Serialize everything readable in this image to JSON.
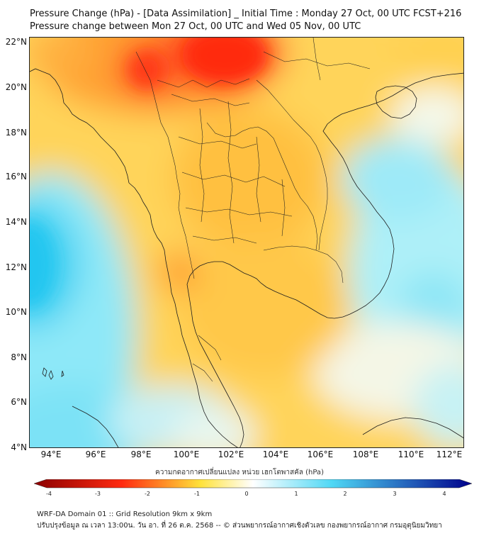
{
  "title_line1": "Pressure Change (hPa) - [Data Assimilation] _ Initial Time : Monday 27 Oct, 00 UTC FCST+216",
  "title_line2": "Pressure change between Mon 27 Oct, 00 UTC and Wed 05 Nov, 00 UTC",
  "lat_labels": [
    "22°N",
    "20°N",
    "18°N",
    "16°N",
    "14°N",
    "12°N",
    "10°N",
    "8°N",
    "6°N",
    "4°N"
  ],
  "lon_labels": [
    "94°E",
    "96°E",
    "98°E",
    "100°E",
    "102°E",
    "104°E",
    "106°E",
    "108°E",
    "110°E",
    "112°E"
  ],
  "colorbar": {
    "title": "ความกดอากาศเปลี่ยนแปลง หน่วย เฮกโตพาสคัล (hPa)",
    "ticks": [
      "-4",
      "-3",
      "-2",
      "-1",
      "0",
      "1",
      "2",
      "3",
      "4"
    ],
    "colors": {
      "strong_fall": "#8b0000",
      "fall": "#ff2a10",
      "slight_fall": "#ffe23a",
      "neutral": "#ffffff",
      "rise": "#4fd8f5",
      "strong_rise": "#00008b"
    }
  },
  "footer_line1": "WRF-DA Domain 01 :: Grid Resolution 9km x 9km",
  "footer_line2": "ปรับปรุงข้อมูล ณ เวลา 13:00น. วัน อา. ที่ 26 ต.ค. 2568 -- © ส่วนพยากรณ์อากาศเชิงตัวเลข กองพยากรณ์อากาศ กรมอุตุนิยมวิทยา"
}
